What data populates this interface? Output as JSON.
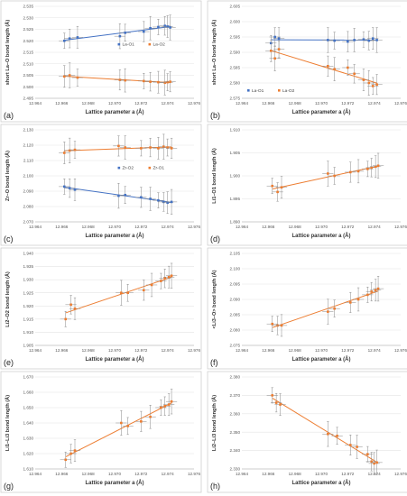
{
  "chart_data": [
    {
      "panel_label": "(a)",
      "type": "scatter",
      "ylabel": "short La–O bond length (Å)",
      "xlabel": "Lattice parameter a (Å)",
      "xlim": [
        12.964,
        12.976
      ],
      "ylim": [
        2.495,
        2.535
      ],
      "xticks": [
        "12.964",
        "12.966",
        "12.968",
        "12.970",
        "12.972",
        "12.974",
        "12.976"
      ],
      "yticks": [
        "2.495",
        "2.500",
        "2.505",
        "2.510",
        "2.515",
        "2.520",
        "2.525",
        "2.530",
        "2.535"
      ],
      "legend": [
        "La-O1",
        "La-O2"
      ],
      "legend_position": "center-right",
      "series": [
        {
          "name": "La-O1",
          "color": "#4472C4",
          "x": [
            12.9662,
            12.9666,
            12.9672,
            12.9704,
            12.9708,
            12.9722,
            12.9727,
            12.9733,
            12.9738,
            12.974,
            12.9742
          ],
          "y": [
            2.52,
            2.521,
            2.5215,
            2.522,
            2.5235,
            2.524,
            2.5255,
            2.526,
            2.5265,
            2.5262,
            2.5258
          ]
        },
        {
          "name": "La-O2",
          "color": "#ED7D31",
          "x": [
            12.9662,
            12.9666,
            12.9672,
            12.9704,
            12.9708,
            12.9722,
            12.9727,
            12.9733,
            12.9738,
            12.974,
            12.9742
          ],
          "y": [
            2.5045,
            2.505,
            2.504,
            2.503,
            2.5028,
            2.5025,
            2.5022,
            2.502,
            2.5018,
            2.502,
            2.5022
          ]
        }
      ]
    },
    {
      "panel_label": "(b)",
      "type": "scatter",
      "ylabel": "short La–O bond length (Å)",
      "xlabel": "Lattice parameter a (Å)",
      "xlim": [
        12.964,
        12.976
      ],
      "ylim": [
        2.575,
        2.605
      ],
      "xticks": [
        "12.964",
        "12.966",
        "12.968",
        "12.970",
        "12.972",
        "12.974",
        "12.976"
      ],
      "yticks": [
        "2.575",
        "2.580",
        "2.585",
        "2.590",
        "2.595",
        "2.600",
        "2.605"
      ],
      "legend": [
        "La-O1",
        "La-O2"
      ],
      "legend_position": "bottom-left",
      "series": [
        {
          "name": "La-O1",
          "color": "#4472C4",
          "x": [
            12.9662,
            12.9665,
            12.9668,
            12.9705,
            12.971,
            12.972,
            12.9725,
            12.9732,
            12.9736,
            12.9739,
            12.9742
          ],
          "y": [
            2.593,
            2.595,
            2.5945,
            2.594,
            2.5938,
            2.5935,
            2.594,
            2.5942,
            2.5938,
            2.5945,
            2.594
          ]
        },
        {
          "name": "La-O2",
          "color": "#ED7D31",
          "x": [
            12.9662,
            12.9665,
            12.9668,
            12.9705,
            12.971,
            12.972,
            12.9725,
            12.9732,
            12.9736,
            12.9739,
            12.9742
          ],
          "y": [
            2.5905,
            2.588,
            2.591,
            2.5855,
            2.5845,
            2.585,
            2.583,
            2.581,
            2.58,
            2.579,
            2.5795
          ]
        }
      ]
    },
    {
      "panel_label": "(c)",
      "type": "scatter",
      "ylabel": "Zr–O bond length (Å)",
      "xlabel": "Lattice parameter a (Å)",
      "xlim": [
        12.964,
        12.976
      ],
      "ylim": [
        2.07,
        2.13
      ],
      "xticks": [
        "12.964",
        "12.966",
        "12.968",
        "12.970",
        "12.972",
        "12.974",
        "12.976"
      ],
      "yticks": [
        "2.070",
        "2.080",
        "2.090",
        "2.100",
        "2.110",
        "2.120",
        "2.130"
      ],
      "legend": [
        "Zr-O2",
        "Zr-O1"
      ],
      "legend_position": "center-right",
      "series": [
        {
          "name": "Zr-O2",
          "color": "#4472C4",
          "x": [
            12.9662,
            12.9666,
            12.967,
            12.9703,
            12.9708,
            12.972,
            12.9727,
            12.9733,
            12.9737,
            12.974,
            12.9743
          ],
          "y": [
            2.093,
            2.092,
            2.091,
            2.087,
            2.0875,
            2.086,
            2.085,
            2.084,
            2.083,
            2.0825,
            2.083
          ]
        },
        {
          "name": "Zr-O1",
          "color": "#ED7D31",
          "x": [
            12.9662,
            12.9666,
            12.967,
            12.9703,
            12.9708,
            12.972,
            12.9727,
            12.9733,
            12.9737,
            12.974,
            12.9743
          ],
          "y": [
            2.115,
            2.1165,
            2.117,
            2.1195,
            2.1185,
            2.118,
            2.1185,
            2.118,
            2.119,
            2.1185,
            2.118
          ]
        }
      ]
    },
    {
      "panel_label": "(d)",
      "type": "scatter",
      "ylabel": "Li1–O1 bond length (Å)",
      "xlabel": "Lattice parameter a (Å)",
      "xlim": [
        12.964,
        12.976
      ],
      "ylim": [
        1.89,
        1.91
      ],
      "xticks": [
        "12.964",
        "12.966",
        "12.968",
        "12.970",
        "12.972",
        "12.974",
        "12.976"
      ],
      "yticks": [
        "1.890",
        "1.895",
        "1.900",
        "1.905",
        "1.910"
      ],
      "series": [
        {
          "name": "",
          "color": "#ED7D31",
          "x": [
            12.9663,
            12.9667,
            12.967,
            12.9705,
            12.971,
            12.9722,
            12.9728,
            12.9735,
            12.9738,
            12.9741,
            12.9743
          ],
          "y": [
            1.8978,
            1.8965,
            1.8975,
            1.9005,
            1.9,
            1.9008,
            1.901,
            1.9015,
            1.9018,
            1.902,
            1.9022
          ]
        }
      ]
    },
    {
      "panel_label": "(e)",
      "type": "scatter",
      "ylabel": "Li2–O2 bond length (Å)",
      "xlabel": "Lattice parameter a (Å)",
      "xlim": [
        12.964,
        12.976
      ],
      "ylim": [
        1.905,
        1.94
      ],
      "xticks": [
        "12.964",
        "12.966",
        "12.968",
        "12.970",
        "12.972",
        "12.974",
        "12.976"
      ],
      "yticks": [
        "1.905",
        "1.910",
        "1.915",
        "1.920",
        "1.925",
        "1.930",
        "1.935",
        "1.940"
      ],
      "series": [
        {
          "name": "",
          "color": "#ED7D31",
          "x": [
            12.9663,
            12.9667,
            12.967,
            12.9705,
            12.971,
            12.9722,
            12.9728,
            12.9735,
            12.9738,
            12.9741,
            12.9743
          ],
          "y": [
            1.915,
            1.9205,
            1.919,
            1.925,
            1.925,
            1.926,
            1.928,
            1.9295,
            1.9305,
            1.931,
            1.9315
          ]
        }
      ]
    },
    {
      "panel_label": "(f)",
      "type": "scatter",
      "ylabel": "<Li3–O> bond length (Å)",
      "xlabel": "Lattice parameter a (Å)",
      "xlim": [
        12.964,
        12.976
      ],
      "ylim": [
        2.075,
        2.105
      ],
      "xticks": [
        "12.964",
        "12.966",
        "12.968",
        "12.970",
        "12.972",
        "12.974",
        "12.976"
      ],
      "yticks": [
        "2.075",
        "2.080",
        "2.085",
        "2.090",
        "2.095",
        "2.100",
        "2.105"
      ],
      "series": [
        {
          "name": "",
          "color": "#ED7D31",
          "x": [
            12.9663,
            12.9667,
            12.967,
            12.9705,
            12.971,
            12.9722,
            12.9728,
            12.9735,
            12.9738,
            12.9741,
            12.9743
          ],
          "y": [
            2.082,
            2.0815,
            2.0815,
            2.086,
            2.087,
            2.089,
            2.09,
            2.0915,
            2.0925,
            2.093,
            2.0935
          ]
        }
      ]
    },
    {
      "panel_label": "(g)",
      "type": "scatter",
      "ylabel": "Li1–Li3 bond length (Å)",
      "xlabel": "Lattice parameter a (Å)",
      "xlim": [
        12.964,
        12.976
      ],
      "ylim": [
        1.61,
        1.67
      ],
      "xticks": [
        "12.964",
        "12.966",
        "12.968",
        "12.970",
        "12.972",
        "12.974",
        "12.976"
      ],
      "yticks": [
        "1.610",
        "1.620",
        "1.630",
        "1.640",
        "1.650",
        "1.660",
        "1.670"
      ],
      "series": [
        {
          "name": "",
          "color": "#ED7D31",
          "x": [
            12.9663,
            12.9667,
            12.967,
            12.9705,
            12.971,
            12.972,
            12.9727,
            12.9735,
            12.9738,
            12.9741,
            12.9743
          ],
          "y": [
            1.616,
            1.62,
            1.622,
            1.64,
            1.638,
            1.641,
            1.644,
            1.65,
            1.651,
            1.652,
            1.654
          ]
        }
      ]
    },
    {
      "panel_label": "(h)",
      "type": "scatter",
      "ylabel": "Li2–Li3 bond length (Å)",
      "xlabel": "Lattice parameter a (Å)",
      "xlim": [
        12.964,
        12.976
      ],
      "ylim": [
        2.33,
        2.38
      ],
      "xticks": [
        "12.964",
        "12.966",
        "12.968",
        "12.970",
        "12.972",
        "12.974",
        "12.976"
      ],
      "yticks": [
        "2.330",
        "2.340",
        "2.350",
        "2.360",
        "2.370",
        "2.380"
      ],
      "series": [
        {
          "name": "",
          "color": "#ED7D31",
          "x": [
            12.9663,
            12.9666,
            12.9669,
            12.9705,
            12.9712,
            12.9722,
            12.9727,
            12.9735,
            12.9738,
            12.974,
            12.9742
          ],
          "y": [
            2.37,
            2.366,
            2.365,
            2.349,
            2.348,
            2.343,
            2.342,
            2.338,
            2.334,
            2.333,
            2.3335
          ]
        }
      ]
    }
  ]
}
